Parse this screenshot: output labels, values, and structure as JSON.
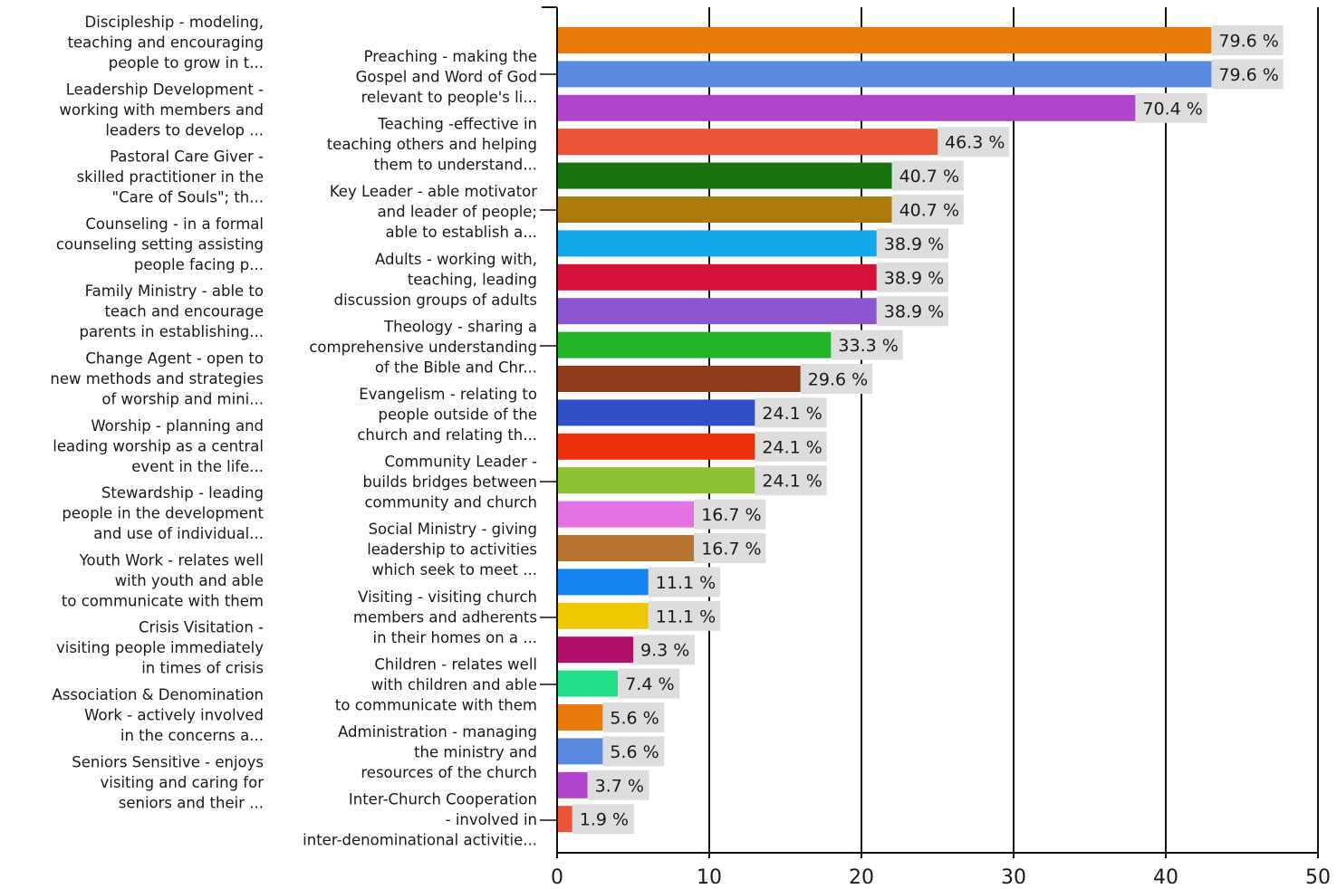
{
  "chart_data": {
    "type": "bar",
    "orientation": "horizontal",
    "categories": [
      "Preaching - making the Gospel and Word of God relevant to people's li...",
      "Discipleship - modeling, teaching and encouraging people to grow in t...",
      "Teaching -effective in teaching others and helping them to understand...",
      "Leadership Development - working with members and leaders to develop ...",
      "Key Leader - able motivator and leader of people; able to establish a...",
      "Pastoral Care Giver - skilled practitioner in the \"Care of Souls\"; th...",
      "Adults - working with, teaching, leading discussion groups of adults",
      "Counseling - in a formal counseling setting assisting people facing p...",
      "Theology - sharing a comprehensive understanding of the Bible and Chr...",
      "Family Ministry - able to teach and encourage parents in establishing...",
      "Evangelism - relating to people outside of the church and relating th...",
      "Change Agent - open to new methods and strategies of worship and mini...",
      "Community Leader - builds bridges between community and church",
      "Worship - planning and leading worship as a central event in the life...",
      "Social Ministry - giving leadership to activities which seek to meet ...",
      "Stewardship - leading people in the development and use of individual...",
      "Visiting - visiting church members and adherents in their homes on a ...",
      "Youth Work - relates well with youth and able to communicate with them",
      "Children - relates well with children and able to communicate with them",
      "Crisis Visitation - visiting people immediately in times of crisis",
      "Administration - managing the ministry and resources of the church",
      "Association & Denomination Work - actively involved in the concerns a...",
      "Inter-Church Cooperation - involved in inter-denominational activitie...",
      "Seniors Sensitive - enjoys visiting and caring for seniors and their ..."
    ],
    "label_lines": [
      [
        "Preaching - making the",
        "Gospel and Word of God",
        "relevant to people's li..."
      ],
      [
        "Discipleship - modeling,",
        "teaching and encouraging",
        "people to grow in t..."
      ],
      [
        "Teaching -effective in",
        "teaching others and helping",
        "them to understand..."
      ],
      [
        "Leadership Development -",
        "working with members and",
        "leaders to develop ..."
      ],
      [
        "Key Leader - able motivator",
        "and leader of people;",
        "able to establish a..."
      ],
      [
        "Pastoral Care Giver -",
        "skilled practitioner in the",
        "\"Care of Souls\"; th..."
      ],
      [
        "Adults - working with,",
        "teaching, leading",
        "discussion groups of adults"
      ],
      [
        "Counseling - in a formal",
        "counseling setting assisting",
        "people facing p..."
      ],
      [
        "Theology - sharing a",
        "comprehensive understanding",
        "of the Bible and Chr..."
      ],
      [
        "Family Ministry - able to",
        "teach and encourage",
        "parents in establishing..."
      ],
      [
        "Evangelism - relating to",
        "people outside of the",
        "church and relating th..."
      ],
      [
        "Change Agent - open to",
        "new methods and strategies",
        "of worship and mini..."
      ],
      [
        "Community Leader -",
        "builds bridges between",
        "community and church"
      ],
      [
        "Worship - planning and",
        "leading worship as a central",
        "event in the life..."
      ],
      [
        "Social Ministry - giving",
        "leadership to activities",
        "which seek to meet ..."
      ],
      [
        "Stewardship - leading",
        "people in the development",
        "and use of individual..."
      ],
      [
        "Visiting - visiting church",
        "members and adherents",
        "in their homes on a ..."
      ],
      [
        "Youth Work - relates well",
        "with youth and able",
        "to communicate with them"
      ],
      [
        "Children - relates well",
        "with children and able",
        "to communicate with them"
      ],
      [
        "Crisis Visitation -",
        "visiting people immediately",
        "in times of crisis"
      ],
      [
        "Administration - managing",
        "the ministry and",
        "resources of the church"
      ],
      [
        "Association & Denomination",
        "Work - actively involved",
        "in the concerns a..."
      ],
      [
        "Inter-Church Cooperation",
        "- involved in",
        "inter-denominational activitie..."
      ],
      [
        "Seniors Sensitive - enjoys",
        "visiting and caring for",
        "seniors and their ..."
      ]
    ],
    "values": [
      43,
      43,
      38,
      25,
      22,
      22,
      21,
      21,
      21,
      18,
      16,
      13,
      13,
      13,
      9,
      9,
      6,
      6,
      5,
      4,
      3,
      3,
      2,
      1
    ],
    "data_labels": [
      "79.6 %",
      "79.6 %",
      "70.4 %",
      "46.3 %",
      "40.7 %",
      "40.7 %",
      "38.9 %",
      "38.9 %",
      "38.9 %",
      "33.3 %",
      "29.6 %",
      "24.1 %",
      "24.1 %",
      "24.1 %",
      "16.7 %",
      "16.7 %",
      "11.1 %",
      "11.1 %",
      "9.3 %",
      "7.4 %",
      "5.6 %",
      "5.6 %",
      "3.7 %",
      "1.9 %"
    ],
    "colors": [
      "#ea7a0b",
      "#5a8ae0",
      "#b045cc",
      "#ea5338",
      "#17730e",
      "#ad7a0c",
      "#13a6e8",
      "#d61038",
      "#8c55d0",
      "#21b42a",
      "#8e3b1c",
      "#2f4ec8",
      "#ee2f0c",
      "#8cc132",
      "#e373e3",
      "#b8742f",
      "#1684f0",
      "#f0c800",
      "#b0106a",
      "#22de8a",
      "#ea7a0b",
      "#5a8ae0",
      "#b045cc",
      "#ea5338"
    ],
    "xlim": [
      0,
      50
    ],
    "xticks": [
      0,
      10,
      20,
      30,
      40,
      50
    ],
    "grid": "vertical gridlines at major ticks",
    "title": "",
    "xlabel": "",
    "ylabel": "",
    "legend": "none"
  }
}
